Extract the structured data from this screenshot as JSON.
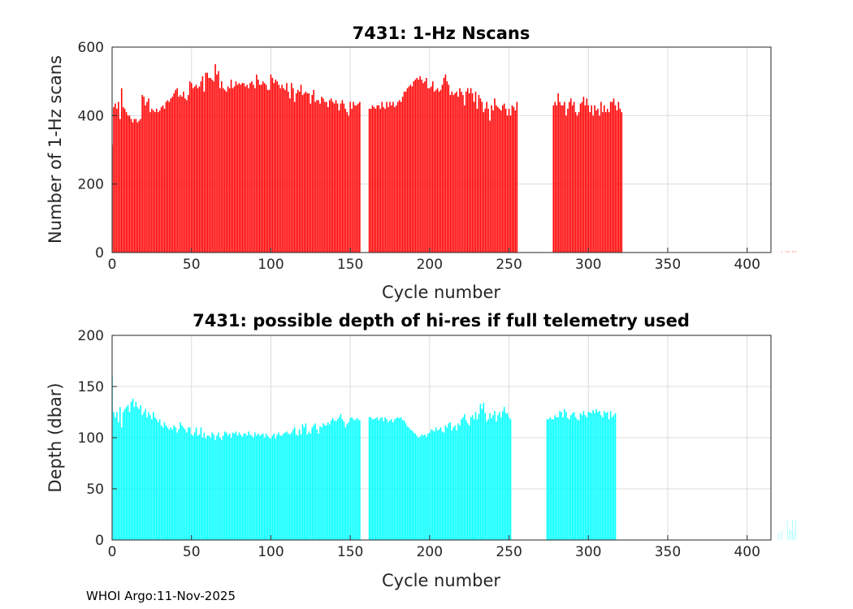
{
  "footer": "WHOI Argo:11-Nov-2025",
  "chart_data": [
    {
      "type": "bar",
      "title": "7431: 1-Hz Nscans",
      "xlabel": "Cycle number",
      "ylabel": "Number of 1-Hz scans",
      "xlim": [
        0,
        415
      ],
      "ylim": [
        0,
        600
      ],
      "xticks": [
        0,
        50,
        100,
        150,
        200,
        250,
        300,
        350,
        400
      ],
      "yticks": [
        0,
        200,
        400,
        600
      ],
      "grid": true,
      "color": "#ff0000",
      "x_start": 0,
      "values": [
        315,
        425,
        435,
        420,
        440,
        390,
        480,
        425,
        420,
        410,
        400,
        400,
        390,
        380,
        390,
        390,
        380,
        385,
        390,
        460,
        455,
        430,
        440,
        450,
        410,
        420,
        415,
        410,
        420,
        410,
        415,
        425,
        430,
        420,
        440,
        445,
        440,
        450,
        455,
        465,
        475,
        480,
        455,
        460,
        455,
        470,
        450,
        445,
        460,
        500,
        495,
        480,
        485,
        490,
        480,
        485,
        500,
        515,
        470,
        525,
        525,
        510,
        510,
        505,
        500,
        550,
        520,
        530,
        480,
        500,
        480,
        475,
        470,
        485,
        480,
        505,
        480,
        485,
        500,
        490,
        495,
        490,
        495,
        495,
        485,
        490,
        480,
        495,
        500,
        490,
        480,
        520,
        505,
        490,
        490,
        500,
        495,
        490,
        475,
        475,
        520,
        510,
        495,
        505,
        500,
        490,
        480,
        490,
        480,
        475,
        495,
        470,
        450,
        495,
        480,
        440,
        465,
        475,
        470,
        490,
        460,
        465,
        470,
        465,
        465,
        435,
        460,
        475,
        440,
        445,
        445,
        435,
        455,
        450,
        440,
        440,
        425,
        445,
        450,
        440,
        435,
        445,
        435,
        415,
        435,
        445,
        435,
        420,
        410,
        400,
        440,
        420,
        440,
        430,
        430,
        435,
        440,
        0,
        0,
        0,
        0,
        0,
        420,
        420,
        430,
        425,
        420,
        430,
        430,
        420,
        440,
        425,
        420,
        440,
        425,
        440,
        430,
        440,
        425,
        430,
        440,
        445,
        440,
        455,
        470,
        470,
        480,
        485,
        490,
        485,
        500,
        505,
        510,
        505,
        515,
        505,
        495,
        500,
        510,
        480,
        480,
        485,
        500,
        470,
        475,
        480,
        470,
        475,
        490,
        510,
        520,
        500,
        490,
        460,
        470,
        460,
        465,
        470,
        455,
        480,
        470,
        460,
        430,
        470,
        480,
        465,
        480,
        465,
        440,
        470,
        420,
        460,
        450,
        440,
        410,
        420,
        440,
        420,
        385,
        430,
        415,
        450,
        430,
        425,
        420,
        415,
        430,
        435,
        420,
        400,
        420,
        400,
        430,
        425,
        415,
        440,
        0,
        0,
        0,
        0,
        0,
        0,
        0,
        0,
        0,
        0,
        0,
        0,
        0,
        0,
        0,
        0,
        0,
        0,
        0,
        0,
        0,
        0,
        430,
        440,
        430,
        465,
        440,
        430,
        430,
        440,
        400,
        420,
        440,
        450,
        430,
        440,
        410,
        400,
        410,
        435,
        440,
        455,
        430,
        450,
        430,
        410,
        430,
        400,
        430,
        415,
        420,
        400,
        440,
        410,
        430,
        410,
        420,
        410,
        440,
        440,
        450,
        430,
        415,
        440,
        420,
        410,
        0,
        0,
        0,
        0,
        0,
        0,
        0,
        0,
        0,
        0,
        0,
        0,
        0,
        0,
        0,
        0,
        0,
        0,
        0,
        0,
        0,
        0,
        0,
        0,
        0,
        0,
        0,
        0,
        0,
        0,
        0,
        0,
        0,
        0,
        0,
        0,
        0,
        0,
        0,
        0,
        0,
        0,
        0,
        0,
        0,
        0,
        0,
        0,
        0,
        0,
        0,
        0,
        0,
        0,
        0,
        0,
        0,
        0,
        0,
        0,
        0,
        0,
        0,
        0,
        0,
        0,
        0,
        0,
        0,
        0,
        0,
        0,
        0,
        0,
        0,
        0,
        0,
        0,
        0,
        0,
        0,
        0,
        0,
        0,
        0,
        0,
        0,
        0,
        0,
        0,
        0,
        0,
        0,
        0,
        0,
        0,
        0,
        0,
        0,
        0,
        5,
        0,
        0,
        5,
        5,
        5,
        0,
        5,
        5,
        5
      ]
    },
    {
      "type": "bar",
      "title": "7431: possible depth of hi-res if full telemetry used",
      "xlabel": "Cycle number",
      "ylabel": "Depth (dbar)",
      "xlim": [
        0,
        415
      ],
      "ylim": [
        0,
        200
      ],
      "xticks": [
        0,
        50,
        100,
        150,
        200,
        250,
        300,
        350,
        400
      ],
      "yticks": [
        0,
        50,
        100,
        150,
        200
      ],
      "grid": true,
      "color": "#00ffff",
      "x_start": 0,
      "values": [
        160,
        125,
        120,
        125,
        115,
        130,
        110,
        125,
        128,
        130,
        132,
        125,
        135,
        138,
        130,
        135,
        130,
        128,
        132,
        122,
        125,
        128,
        120,
        125,
        122,
        118,
        125,
        120,
        118,
        115,
        118,
        112,
        110,
        115,
        112,
        110,
        108,
        110,
        108,
        112,
        110,
        105,
        108,
        115,
        112,
        110,
        108,
        105,
        110,
        110,
        103,
        102,
        105,
        110,
        102,
        103,
        110,
        100,
        105,
        99,
        102,
        102,
        100,
        105,
        103,
        98,
        102,
        105,
        100,
        98,
        102,
        106,
        105,
        102,
        104,
        100,
        105,
        104,
        106,
        102,
        105,
        103,
        101,
        104,
        104,
        102,
        106,
        103,
        102,
        100,
        105,
        102,
        104,
        102,
        103,
        104,
        100,
        104,
        102,
        100,
        99,
        102,
        104,
        99,
        103,
        105,
        102,
        102,
        104,
        105,
        106,
        104,
        103,
        105,
        108,
        110,
        103,
        102,
        108,
        103,
        113,
        110,
        114,
        103,
        106,
        104,
        110,
        112,
        114,
        108,
        104,
        111,
        110,
        114,
        112,
        112,
        115,
        113,
        117,
        119,
        117,
        116,
        118,
        120,
        123,
        118,
        116,
        110,
        113,
        115,
        119,
        120,
        118,
        117,
        119,
        118,
        117,
        0,
        0,
        0,
        0,
        0,
        120,
        120,
        118,
        118,
        119,
        120,
        117,
        119,
        120,
        116,
        120,
        118,
        115,
        117,
        118,
        115,
        118,
        119,
        120,
        119,
        120,
        117,
        117,
        114,
        111,
        110,
        108,
        107,
        105,
        104,
        102,
        100,
        101,
        103,
        102,
        103,
        101,
        104,
        105,
        108,
        107,
        106,
        110,
        107,
        108,
        110,
        106,
        105,
        112,
        110,
        114,
        115,
        107,
        110,
        112,
        107,
        114,
        112,
        118,
        120,
        123,
        117,
        114,
        112,
        120,
        122,
        118,
        125,
        118,
        123,
        133,
        128,
        134,
        124,
        116,
        118,
        124,
        119,
        122,
        126,
        116,
        122,
        125,
        120,
        126,
        130,
        124,
        124,
        120,
        118,
        0,
        0,
        0,
        0,
        0,
        0,
        0,
        0,
        0,
        0,
        0,
        0,
        0,
        0,
        0,
        0,
        0,
        0,
        0,
        0,
        0,
        0,
        118,
        118,
        120,
        118,
        118,
        122,
        120,
        120,
        126,
        125,
        120,
        128,
        125,
        119,
        118,
        122,
        124,
        125,
        120,
        118,
        117,
        124,
        122,
        126,
        122,
        120,
        125,
        125,
        124,
        127,
        124,
        128,
        125,
        126,
        122,
        120,
        126,
        124,
        125,
        118,
        126,
        120,
        122,
        124,
        0,
        0,
        0,
        0,
        0,
        0,
        0,
        0,
        0,
        0,
        0,
        0,
        0,
        0,
        0,
        0,
        0,
        0,
        0,
        0,
        0,
        0,
        0,
        0,
        0,
        0,
        0,
        0,
        0,
        0,
        0,
        0,
        0,
        0,
        0,
        0,
        0,
        0,
        0,
        0,
        0,
        0,
        0,
        0,
        0,
        0,
        0,
        0,
        0,
        0,
        0,
        0,
        0,
        0,
        0,
        0,
        0,
        0,
        0,
        0,
        0,
        0,
        0,
        0,
        0,
        0,
        0,
        0,
        0,
        0,
        0,
        0,
        0,
        0,
        0,
        0,
        0,
        0,
        0,
        0,
        0,
        0,
        0,
        0,
        0,
        0,
        0,
        0,
        0,
        0,
        0,
        0,
        0,
        0,
        0,
        0,
        0,
        0,
        0,
        0,
        0,
        0,
        7,
        0,
        9,
        0,
        0,
        0,
        19,
        10,
        10,
        20,
        10,
        20
      ]
    }
  ]
}
